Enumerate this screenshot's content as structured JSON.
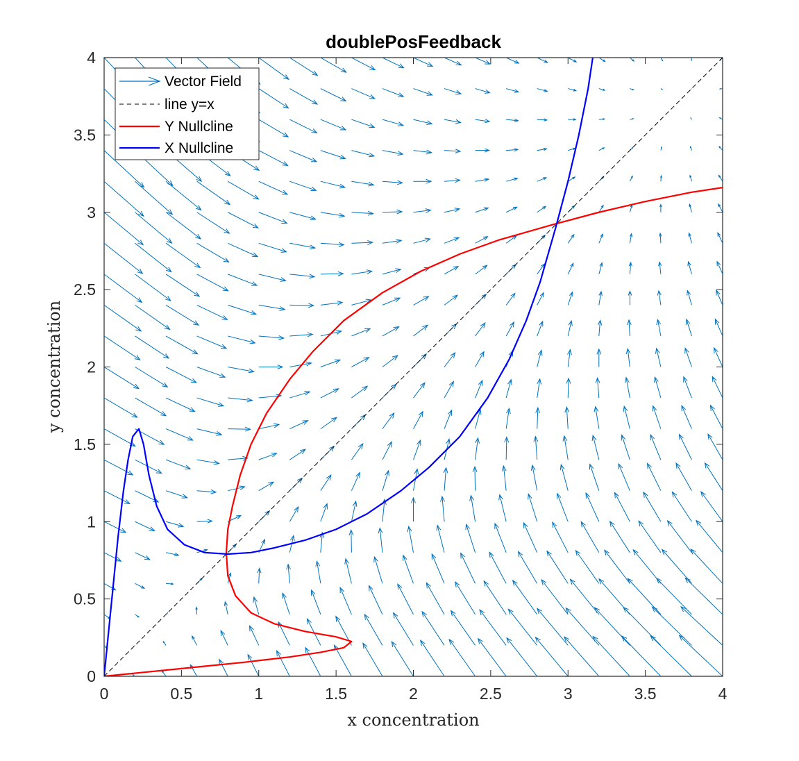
{
  "chart_data": {
    "type": "line",
    "title": "doublePosFeedback",
    "xlabel": "x concentration",
    "ylabel": "y concentration",
    "xlim": [
      0,
      4
    ],
    "ylim": [
      0,
      4
    ],
    "xticks": [
      "0",
      "0.5",
      "1",
      "1.5",
      "2",
      "2.5",
      "3",
      "3.5",
      "4"
    ],
    "yticks": [
      "0",
      "0.5",
      "1",
      "1.5",
      "2",
      "2.5",
      "3",
      "3.5",
      "4"
    ],
    "grid": false,
    "legend_position": "top-left",
    "legend": [
      {
        "label": "Vector Field",
        "style": "arrow",
        "color": "#0072BD"
      },
      {
        "label": "line y=x",
        "style": "dashed",
        "color": "#000000"
      },
      {
        "label": "Y Nullcline",
        "style": "solid",
        "color": "#FF0000"
      },
      {
        "label": "X Nullcline",
        "style": "solid",
        "color": "#0000FF"
      }
    ],
    "series": [
      {
        "name": "line y=x",
        "color": "#000000",
        "dash": true,
        "points": [
          [
            0,
            0
          ],
          [
            4,
            4
          ]
        ]
      },
      {
        "name": "Y Nullcline",
        "color": "#FF0000",
        "points": [
          [
            0.0,
            0.0
          ],
          [
            0.3,
            0.03
          ],
          [
            0.6,
            0.06
          ],
          [
            0.9,
            0.09
          ],
          [
            1.2,
            0.125
          ],
          [
            1.4,
            0.155
          ],
          [
            1.55,
            0.185
          ],
          [
            1.6,
            0.225
          ],
          [
            1.5,
            0.255
          ],
          [
            1.3,
            0.29
          ],
          [
            1.1,
            0.34
          ],
          [
            0.95,
            0.41
          ],
          [
            0.85,
            0.52
          ],
          [
            0.8,
            0.65
          ],
          [
            0.79,
            0.8
          ],
          [
            0.8,
            0.95
          ],
          [
            0.83,
            1.1
          ],
          [
            0.88,
            1.3
          ],
          [
            0.95,
            1.5
          ],
          [
            1.05,
            1.7
          ],
          [
            1.2,
            1.92
          ],
          [
            1.35,
            2.1
          ],
          [
            1.55,
            2.3
          ],
          [
            1.8,
            2.48
          ],
          [
            2.05,
            2.62
          ],
          [
            2.3,
            2.73
          ],
          [
            2.55,
            2.82
          ],
          [
            2.9,
            2.92
          ],
          [
            3.2,
            3.0
          ],
          [
            3.5,
            3.07
          ],
          [
            3.8,
            3.13
          ],
          [
            4.0,
            3.16
          ]
        ]
      },
      {
        "name": "X Nullcline",
        "color": "#0000FF",
        "points": [
          [
            0.0,
            0.0
          ],
          [
            0.03,
            0.3
          ],
          [
            0.06,
            0.6
          ],
          [
            0.09,
            0.9
          ],
          [
            0.125,
            1.2
          ],
          [
            0.155,
            1.4
          ],
          [
            0.185,
            1.55
          ],
          [
            0.225,
            1.6
          ],
          [
            0.255,
            1.5
          ],
          [
            0.29,
            1.3
          ],
          [
            0.34,
            1.1
          ],
          [
            0.41,
            0.95
          ],
          [
            0.52,
            0.85
          ],
          [
            0.65,
            0.8
          ],
          [
            0.8,
            0.79
          ],
          [
            0.95,
            0.8
          ],
          [
            1.1,
            0.83
          ],
          [
            1.3,
            0.88
          ],
          [
            1.5,
            0.95
          ],
          [
            1.7,
            1.05
          ],
          [
            1.92,
            1.2
          ],
          [
            2.1,
            1.35
          ],
          [
            2.3,
            1.55
          ],
          [
            2.48,
            1.8
          ],
          [
            2.62,
            2.05
          ],
          [
            2.73,
            2.3
          ],
          [
            2.82,
            2.55
          ],
          [
            2.92,
            2.9
          ],
          [
            3.0,
            3.2
          ],
          [
            3.07,
            3.5
          ],
          [
            3.13,
            3.8
          ],
          [
            3.16,
            4.0
          ]
        ]
      }
    ],
    "vector_field": {
      "name": "Vector Field",
      "color": "#0072BD",
      "grid": [
        0,
        4,
        0.2
      ],
      "field_function": "dx = 4*y^2/(1+y^2) - x ; dy = 4*x^2/(1+x^2) - y ; scaled by 0.07"
    }
  }
}
